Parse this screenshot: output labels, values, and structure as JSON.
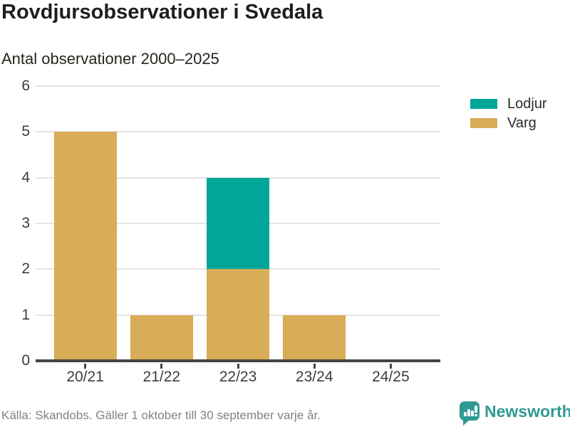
{
  "chart_data": {
    "type": "bar",
    "stacked": true,
    "title": "Rovdjursobservationer i Svedala",
    "subtitle": "Antal observationer 2000–2025",
    "categories": [
      "20/21",
      "21/22",
      "22/23",
      "23/24",
      "24/25"
    ],
    "series": [
      {
        "name": "Lodjur",
        "color": "#00a69a",
        "values": [
          0,
          0,
          2,
          0,
          0
        ]
      },
      {
        "name": "Varg",
        "color": "#d9ac58",
        "values": [
          5,
          1,
          2,
          1,
          0
        ]
      }
    ],
    "totals": [
      5,
      1,
      4,
      1,
      0
    ],
    "xlabel": "",
    "ylabel": "",
    "ylim": [
      0,
      6
    ],
    "yticks": [
      0,
      1,
      2,
      3,
      4,
      5,
      6
    ],
    "grid": true,
    "legend_position": "top-right"
  },
  "footer": {
    "source": "Källa: Skandobs. Gäller 1 oktober till 30 september varje år.",
    "brand": {
      "name": "Newsworthy",
      "color": "#2f9a92",
      "icon": "bar-chart-speech-bubble-icon"
    }
  }
}
